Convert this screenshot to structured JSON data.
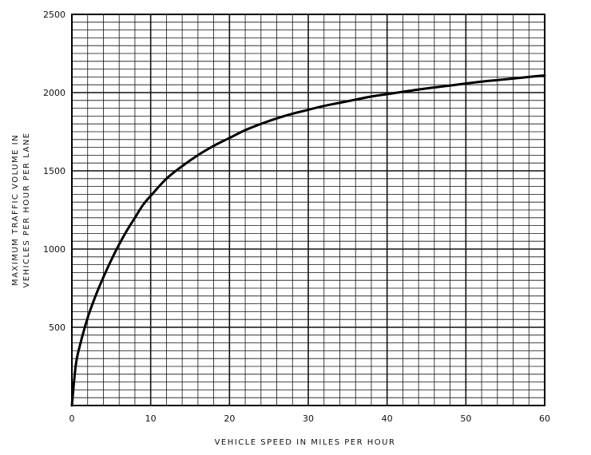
{
  "chart_data": {
    "type": "line",
    "title": "",
    "xlabel": "VEHICLE SPEED IN MILES PER HOUR",
    "ylabel_line1": "MAXIMUM TRAFFIC VOLUME IN",
    "ylabel_line2": "VEHICLES PER HOUR PER LANE",
    "xlim": [
      0,
      60
    ],
    "ylim": [
      0,
      2500
    ],
    "x_ticks": [
      0,
      10,
      20,
      30,
      40,
      50,
      60
    ],
    "y_ticks": [
      500,
      1000,
      1500,
      2000,
      2500
    ],
    "grid": true,
    "series": [
      {
        "x": [
          0,
          0.5,
          1,
          2,
          3,
          4,
          5,
          6,
          7,
          8,
          9,
          10,
          12,
          14,
          16,
          18,
          20,
          22,
          24,
          26,
          28,
          30,
          32,
          34,
          36,
          38,
          40,
          42,
          44,
          46,
          48,
          50,
          52,
          54,
          56,
          58,
          60
        ],
        "y": [
          0,
          260,
          380,
          560,
          700,
          820,
          930,
          1030,
          1120,
          1200,
          1280,
          1340,
          1450,
          1530,
          1600,
          1660,
          1710,
          1760,
          1800,
          1835,
          1865,
          1890,
          1915,
          1935,
          1955,
          1975,
          1990,
          2005,
          2020,
          2033,
          2045,
          2058,
          2070,
          2080,
          2090,
          2100,
          2110
        ]
      }
    ]
  }
}
